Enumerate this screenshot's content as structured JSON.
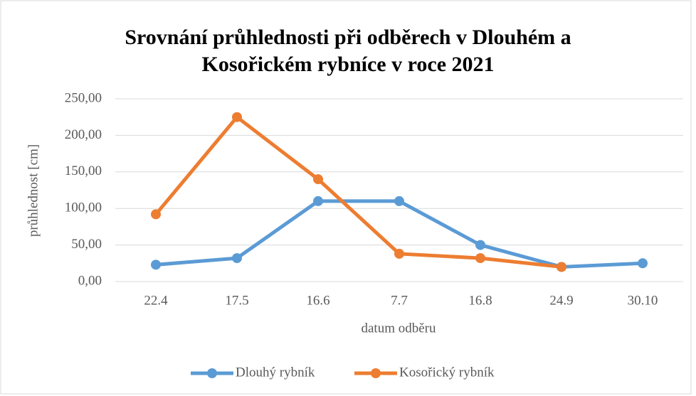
{
  "chart_data": {
    "type": "line",
    "title": [
      "Srovnání průhlednosti při odběrech v Dlouhém a",
      "Kosořickém rybníce v roce 2021"
    ],
    "x_label": "datum odběru",
    "y_label": "průhlednost [cm]",
    "categories": [
      "22.4",
      "17.5",
      "16.6",
      "7.7",
      "16.8",
      "24.9",
      "30.10"
    ],
    "series": [
      {
        "name": "Dlouhý rybník",
        "color": "#5b9bd5",
        "values": [
          23,
          32,
          110,
          110,
          50,
          20,
          25
        ]
      },
      {
        "name": "Kosořický rybník",
        "color": "#ed7d31",
        "values": [
          92,
          225,
          140,
          38,
          32,
          20,
          null
        ]
      }
    ],
    "ylim": [
      0,
      250
    ],
    "yticks": [
      {
        "value": 0,
        "label": "0,00"
      },
      {
        "value": 50,
        "label": "50,00"
      },
      {
        "value": 100,
        "label": "100,00"
      },
      {
        "value": 150,
        "label": "150,00"
      },
      {
        "value": 200,
        "label": "200,00"
      },
      {
        "value": 250,
        "label": "250,00"
      }
    ],
    "grid": true,
    "legend": "bottom"
  }
}
